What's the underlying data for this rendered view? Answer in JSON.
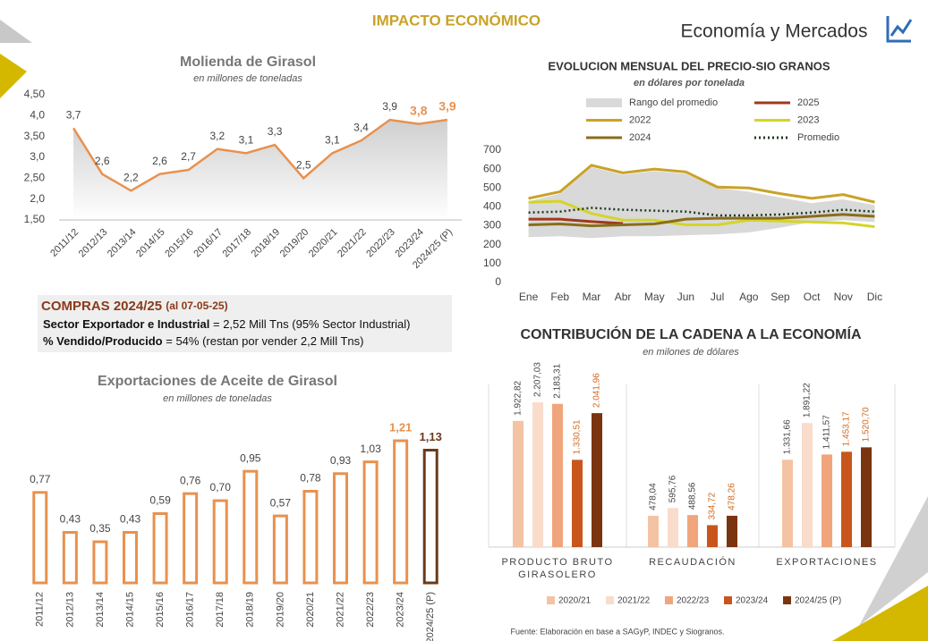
{
  "header": {
    "title": "IMPACTO ECONÓMICO",
    "brand": "Economía y Mercados",
    "source": "Fuente: Elaboración en base a SAGyP, INDEC y Siogranos."
  },
  "compras": {
    "title": "COMPRAS 2024/25",
    "date": "(al 07-05-25)",
    "lines": [
      {
        "label": "Sector Exportador e Industrial",
        "text": " = 2,52 Mill Tns (95% Sector Industrial)"
      },
      {
        "label": "% Vendido/Producido",
        "text": " = 54% (restan por vender 2,2 Mill Tns)"
      }
    ]
  },
  "chart_data": [
    {
      "type": "line",
      "title": "Molienda de Girasol",
      "subtitle": "en millones de toneladas",
      "color": "#e8914f",
      "categories": [
        "2011/12",
        "2012/13",
        "2013/14",
        "2014/15",
        "2015/16",
        "2016/17",
        "2017/18",
        "2018/19",
        "2019/20",
        "2020/21",
        "2021/22",
        "2022/23",
        "2023/24",
        "2024/25 (P)"
      ],
      "values": [
        3.7,
        2.6,
        2.2,
        2.6,
        2.7,
        3.2,
        3.1,
        3.3,
        2.5,
        3.1,
        3.4,
        3.9,
        3.8,
        3.9
      ],
      "value_labels": [
        "3,7",
        "2,6",
        "2,2",
        "2,6",
        "2,7",
        "3,2",
        "3,1",
        "3,3",
        "2,5",
        "3,1",
        "3,4",
        "3,9",
        "3,8",
        "3,9"
      ],
      "ylim": [
        1.5,
        4.5
      ],
      "yticks": [
        {
          "value": 1.5,
          "label": "1,50"
        },
        {
          "value": 2,
          "label": "2,0"
        },
        {
          "value": 2.5,
          "label": "2,50"
        },
        {
          "value": 3,
          "label": "3,0"
        },
        {
          "value": 3.5,
          "label": "3,50"
        },
        {
          "value": 4,
          "label": "4,0"
        },
        {
          "value": 4.5,
          "label": "4,50"
        }
      ]
    },
    {
      "type": "line",
      "title": "EVOLUCION MENSUAL DEL PRECIO-SIO GRANOS",
      "subtitle": "en dólares por tonelada",
      "categories": [
        "Ene",
        "Feb",
        "Mar",
        "Abr",
        "May",
        "Jun",
        "Jul",
        "Ago",
        "Sep",
        "Oct",
        "Nov",
        "Dic"
      ],
      "ylim": [
        0,
        700
      ],
      "yticks": [
        0,
        100,
        200,
        300,
        400,
        500,
        600,
        700
      ],
      "series": [
        {
          "name": "Rango del promedio",
          "color": "#d9d9d9",
          "high": [
            430,
            470,
            610,
            570,
            590,
            575,
            500,
            480,
            450,
            420,
            440,
            410
          ],
          "low": [
            240,
            245,
            235,
            245,
            245,
            250,
            255,
            265,
            290,
            320,
            330,
            320
          ]
        },
        {
          "name": "2025",
          "color": "#a0391a",
          "values": [
            335,
            335,
            322,
            312,
            null,
            null,
            null,
            null,
            null,
            null,
            null,
            null
          ]
        },
        {
          "name": "2022",
          "color": "#c9a227",
          "values": [
            445,
            480,
            620,
            580,
            600,
            585,
            505,
            500,
            470,
            445,
            465,
            425
          ]
        },
        {
          "name": "2023",
          "color": "#d4d42a",
          "values": [
            425,
            430,
            365,
            330,
            330,
            305,
            305,
            330,
            325,
            320,
            315,
            295
          ]
        },
        {
          "name": "2024",
          "color": "#8a6d1a",
          "values": [
            305,
            310,
            300,
            305,
            310,
            335,
            340,
            340,
            340,
            350,
            360,
            350
          ]
        },
        {
          "name": "Promedio",
          "color": "#1f3a1f",
          "line_style": "dotted",
          "values": [
            370,
            375,
            395,
            385,
            380,
            375,
            355,
            355,
            360,
            370,
            385,
            375
          ]
        }
      ]
    },
    {
      "type": "bar",
      "title": "Exportaciones de Aceite de Girasol",
      "subtitle": "en millones de toneladas",
      "categories": [
        "2011/12",
        "2012/13",
        "2013/14",
        "2014/15",
        "2015/16",
        "2016/17",
        "2017/18",
        "2018/19",
        "2019/20",
        "2020/21",
        "2021/22",
        "2022/23",
        "2023/24",
        "2024/25 (P)"
      ],
      "values": [
        0.77,
        0.43,
        0.35,
        0.43,
        0.59,
        0.76,
        0.7,
        0.95,
        0.57,
        0.78,
        0.93,
        1.03,
        1.21,
        1.13
      ],
      "value_labels": [
        "0,77",
        "0,43",
        "0,35",
        "0,43",
        "0,59",
        "0,76",
        "0,70",
        "0,95",
        "0,57",
        "0,78",
        "0,93",
        "1,03",
        "1,21",
        "1,13"
      ],
      "colors": [
        "#e8914f",
        "#e8914f",
        "#e8914f",
        "#e8914f",
        "#e8914f",
        "#e8914f",
        "#e8914f",
        "#e8914f",
        "#e8914f",
        "#e8914f",
        "#e8914f",
        "#e8914f",
        "#e8914f",
        "#6b3a1a"
      ]
    },
    {
      "type": "grouped_bar",
      "title": "CONTRIBUCIÓN DE LA CADENA A LA ECONOMÍA",
      "subtitle": "en milones de dólares",
      "categories": [
        "PRODUCTO BRUTO GIRASOLERO",
        "RECAUDACIÓN",
        "EXPORTACIONES"
      ],
      "series": [
        {
          "name": "2020/21",
          "color": "#f4c3a4",
          "values": [
            1922.82,
            478.04,
            1331.66
          ],
          "value_labels": [
            "1.922,82",
            "478,04",
            "1.331,66"
          ]
        },
        {
          "name": "2021/22",
          "color": "#f9dccb",
          "values": [
            2207.03,
            595.76,
            1891.22
          ],
          "value_labels": [
            "2.207,03",
            "595,76",
            "1.891,22"
          ]
        },
        {
          "name": "2022/23",
          "color": "#f0a57c",
          "values": [
            2183.31,
            488.56,
            1411.57
          ],
          "value_labels": [
            "2.183,31",
            "488,56",
            "1.411,57"
          ]
        },
        {
          "name": "2023/24",
          "color": "#c8561c",
          "values": [
            1330.51,
            334.72,
            1453.17
          ],
          "value_labels": [
            "1.330,51",
            "334,72",
            "1.453,17"
          ]
        },
        {
          "name": "2024/25 (P)",
          "color": "#7b3410",
          "values": [
            2041.96,
            478.26,
            1520.7
          ],
          "value_labels": [
            "2.041,96",
            "478,26",
            "1.520,70"
          ]
        }
      ]
    }
  ]
}
